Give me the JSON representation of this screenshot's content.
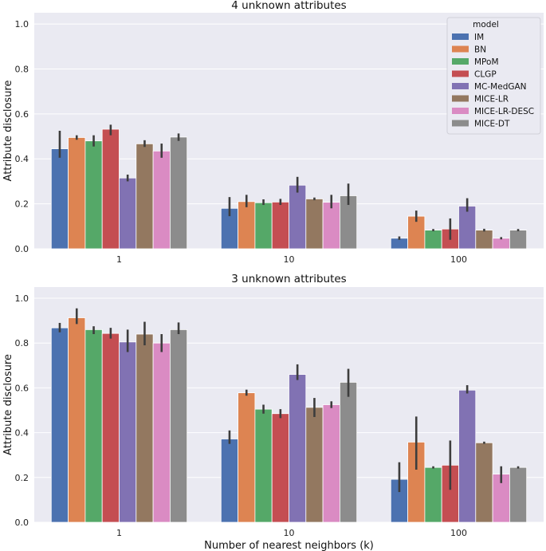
{
  "chart_data": [
    {
      "type": "bar",
      "title": "4 unknown attributes",
      "xlabel": "",
      "ylabel": "Attribute disclosure",
      "categories": [
        "1",
        "10",
        "100"
      ],
      "ylim": [
        0,
        1.05
      ],
      "yticks": [
        "0.0",
        "0.2",
        "0.4",
        "0.6",
        "0.8",
        "1.0"
      ],
      "grid": true,
      "legend": {
        "title": "model",
        "placement": "top-right"
      },
      "series": [
        {
          "name": "IM",
          "color": "#4c72b0",
          "values": [
            0.445,
            0.18,
            0.047
          ],
          "err_low": [
            0.405,
            0.145,
            0.04
          ],
          "err_high": [
            0.525,
            0.23,
            0.055
          ]
        },
        {
          "name": "BN",
          "color": "#dd8452",
          "values": [
            0.495,
            0.21,
            0.145
          ],
          "err_low": [
            0.485,
            0.185,
            0.12
          ],
          "err_high": [
            0.505,
            0.24,
            0.17
          ]
        },
        {
          "name": "MPoM",
          "color": "#55a868",
          "values": [
            0.48,
            0.205,
            0.083
          ],
          "err_low": [
            0.455,
            0.195,
            0.078
          ],
          "err_high": [
            0.505,
            0.22,
            0.088
          ]
        },
        {
          "name": "CLGP",
          "color": "#c44e52",
          "values": [
            0.532,
            0.208,
            0.088
          ],
          "err_low": [
            0.505,
            0.195,
            0.04
          ],
          "err_high": [
            0.552,
            0.222,
            0.135
          ]
        },
        {
          "name": "MC-MedGAN",
          "color": "#8172b3",
          "values": [
            0.315,
            0.283,
            0.19
          ],
          "err_low": [
            0.3,
            0.25,
            0.165
          ],
          "err_high": [
            0.33,
            0.32,
            0.225
          ]
        },
        {
          "name": "MICE-LR",
          "color": "#937860",
          "values": [
            0.467,
            0.222,
            0.083
          ],
          "err_low": [
            0.453,
            0.216,
            0.077
          ],
          "err_high": [
            0.483,
            0.228,
            0.089
          ]
        },
        {
          "name": "MICE-LR-DESC",
          "color": "#da8bc3",
          "values": [
            0.435,
            0.207,
            0.047
          ],
          "err_low": [
            0.405,
            0.18,
            0.042
          ],
          "err_high": [
            0.468,
            0.24,
            0.052
          ]
        },
        {
          "name": "MICE-DT",
          "color": "#8c8c8c",
          "values": [
            0.497,
            0.236,
            0.083
          ],
          "err_low": [
            0.48,
            0.195,
            0.078
          ],
          "err_high": [
            0.513,
            0.29,
            0.088
          ]
        }
      ]
    },
    {
      "type": "bar",
      "title": "3 unknown attributes",
      "xlabel": "Number of nearest neighbors (k)",
      "ylabel": "Attribute disclosure",
      "categories": [
        "1",
        "10",
        "100"
      ],
      "ylim": [
        0,
        1.05
      ],
      "yticks": [
        "0.0",
        "0.2",
        "0.4",
        "0.6",
        "0.8",
        "1.0"
      ],
      "grid": true,
      "series": [
        {
          "name": "IM",
          "color": "#4c72b0",
          "values": [
            0.868,
            0.372,
            0.192
          ],
          "err_low": [
            0.848,
            0.35,
            0.135
          ],
          "err_high": [
            0.89,
            0.41,
            0.268
          ]
        },
        {
          "name": "BN",
          "color": "#dd8452",
          "values": [
            0.913,
            0.578,
            0.358
          ],
          "err_low": [
            0.885,
            0.565,
            0.235
          ],
          "err_high": [
            0.955,
            0.592,
            0.472
          ]
        },
        {
          "name": "MPoM",
          "color": "#55a868",
          "values": [
            0.86,
            0.505,
            0.245
          ],
          "err_low": [
            0.84,
            0.485,
            0.24
          ],
          "err_high": [
            0.875,
            0.525,
            0.25
          ]
        },
        {
          "name": "CLGP",
          "color": "#c44e52",
          "values": [
            0.843,
            0.485,
            0.255
          ],
          "err_low": [
            0.82,
            0.465,
            0.145
          ],
          "err_high": [
            0.868,
            0.505,
            0.365
          ]
        },
        {
          "name": "MC-MedGAN",
          "color": "#8172b3",
          "values": [
            0.805,
            0.66,
            0.59
          ],
          "err_low": [
            0.76,
            0.635,
            0.575
          ],
          "err_high": [
            0.86,
            0.705,
            0.612
          ]
        },
        {
          "name": "MICE-LR",
          "color": "#937860",
          "values": [
            0.84,
            0.513,
            0.355
          ],
          "err_low": [
            0.79,
            0.47,
            0.35
          ],
          "err_high": [
            0.895,
            0.555,
            0.36
          ]
        },
        {
          "name": "MICE-LR-DESC",
          "color": "#da8bc3",
          "values": [
            0.8,
            0.525,
            0.215
          ],
          "err_low": [
            0.76,
            0.51,
            0.175
          ],
          "err_high": [
            0.84,
            0.54,
            0.25
          ]
        },
        {
          "name": "MICE-DT",
          "color": "#8c8c8c",
          "values": [
            0.86,
            0.625,
            0.245
          ],
          "err_low": [
            0.84,
            0.56,
            0.24
          ],
          "err_high": [
            0.892,
            0.685,
            0.25
          ]
        }
      ]
    }
  ]
}
